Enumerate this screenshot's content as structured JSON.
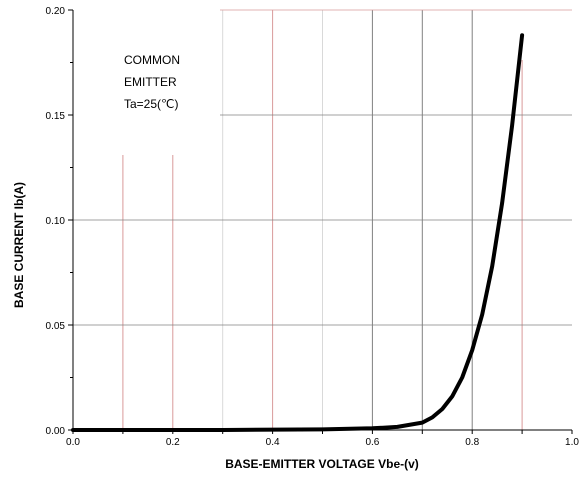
{
  "chart_data": {
    "type": "line",
    "title": "",
    "xlabel": "BASE-EMITTER VOLTAGE Vbe-(v)",
    "ylabel": "BASE CURRENT Ib(A)",
    "xlim": [
      0.0,
      1.0
    ],
    "ylim": [
      0.0,
      0.2
    ],
    "x_ticks": [
      "0.0",
      "0.2",
      "0.4",
      "0.6",
      "0.8",
      "1.0"
    ],
    "y_ticks": [
      "0.00",
      "0.05",
      "0.10",
      "0.15",
      "0.20"
    ],
    "grid": true,
    "annotation": {
      "lines": [
        "COMMON",
        "EMITTER",
        "Ta=25(℃)"
      ]
    },
    "series": [
      {
        "x": [
          0.0,
          0.3,
          0.5,
          0.6,
          0.65,
          0.7,
          0.72,
          0.74,
          0.76,
          0.78,
          0.8,
          0.82,
          0.84,
          0.86,
          0.88,
          0.9
        ],
        "y": [
          0.0,
          0.0,
          0.0003,
          0.0008,
          0.0015,
          0.0035,
          0.006,
          0.01,
          0.016,
          0.025,
          0.038,
          0.055,
          0.078,
          0.108,
          0.145,
          0.188
        ]
      }
    ]
  },
  "colors": {
    "curve": "#000000",
    "grid_dark": "#808080",
    "grid_light": "#d9d9d9",
    "grid_red": "#d99a9a",
    "axis": "#000000"
  }
}
